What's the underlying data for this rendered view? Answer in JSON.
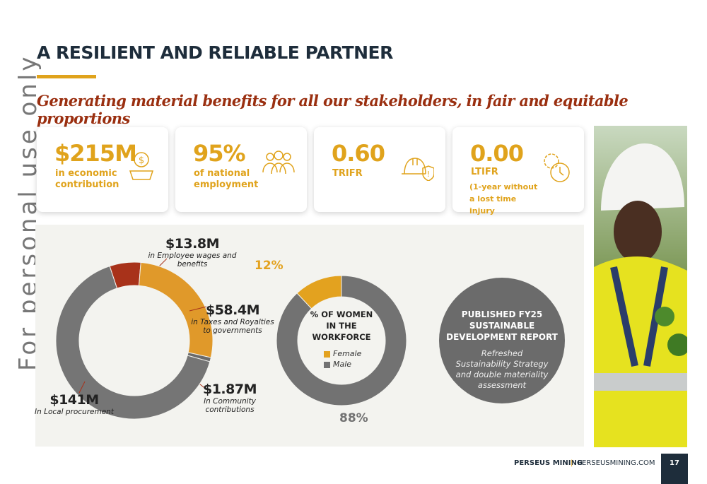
{
  "header": {
    "title": "A RESILIENT AND RELIABLE PARTNER",
    "subtitle": "Generating material benefits for all our stakeholders, in fair and equitable proportions"
  },
  "watermark": "For personal use only",
  "kpis": [
    {
      "value": "$215M",
      "label": "in economic contribution"
    },
    {
      "value": "95%",
      "label": "of national employment"
    },
    {
      "value": "0.60",
      "label": "TRIFR"
    },
    {
      "value": "0.00",
      "label": "LTIFR",
      "note": "(1-year without a lost time injury"
    }
  ],
  "chart_data": [
    {
      "type": "pie",
      "values": [
        13.8,
        58.4,
        1.87,
        141
      ],
      "value_labels": [
        "$13.8M",
        "$58.4M",
        "$1.87M",
        "$141M"
      ],
      "descriptions": [
        "in Employee wages and benefits",
        "in Taxes and Royalties to governments",
        "In Community contributions",
        "In Local procurement"
      ],
      "colors": [
        "#a8321a",
        "#e0992a",
        "#6a6a6a",
        "#757575"
      ]
    },
    {
      "type": "pie",
      "title": "% OF WOMEN IN THE WORKFORCE",
      "categories": [
        "Female",
        "Male"
      ],
      "values": [
        12,
        88
      ],
      "value_labels": [
        "12%",
        "88%"
      ],
      "colors": [
        "#e3a21f",
        "#727272"
      ]
    }
  ],
  "report": {
    "title": "PUBLISHED FY25 SUSTAINABLE DEVELOPMENT REPORT",
    "text": "Refreshed Sustainability Strategy and double materiality assessment"
  },
  "footer": {
    "company": "PERSEUS MINING",
    "site": "PERSEUSMINING.COM",
    "page": "17"
  }
}
